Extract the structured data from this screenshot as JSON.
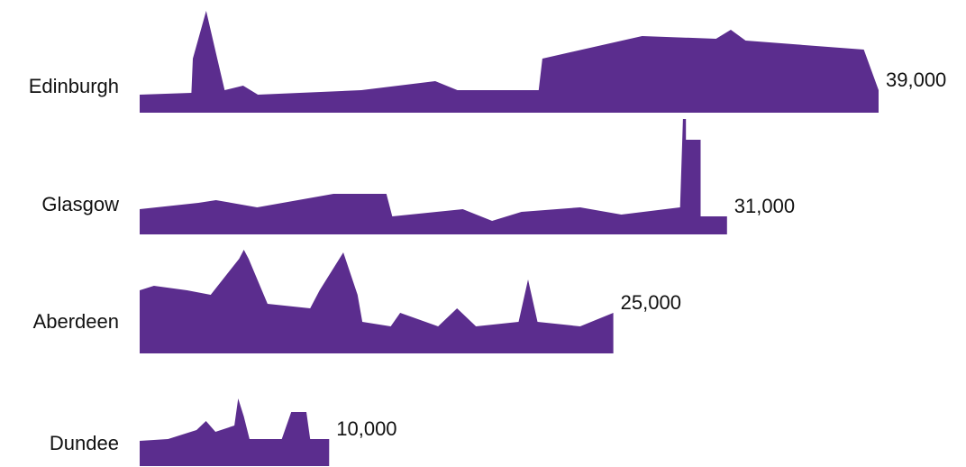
{
  "chart_data": {
    "type": "skyline-bar",
    "categories": [
      "Edinburgh",
      "Glasgow",
      "Aberdeen",
      "Dundee"
    ],
    "values": [
      39000,
      31000,
      25000,
      10000
    ],
    "value_labels": [
      "39,000",
      "31,000",
      "25,000",
      "10,000"
    ],
    "color": "#5b2d8e"
  }
}
